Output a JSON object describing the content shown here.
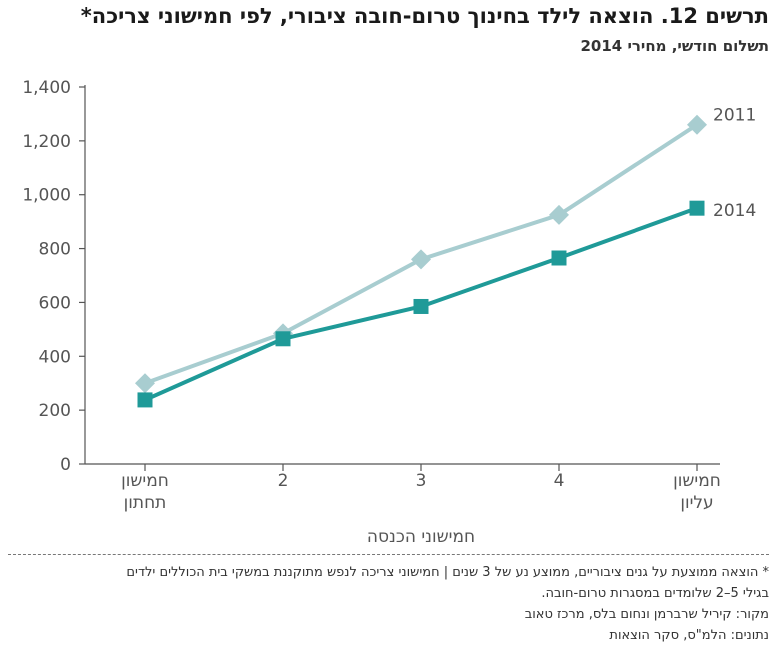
{
  "header": {
    "title": "תרשים 12. הוצאה לילד בחינוך טרום-חובה ציבורי, לפי חמישוני צריכה*",
    "subtitle": "תשלום חודשי, מחירי 2014"
  },
  "chart_data": {
    "type": "line",
    "categories": [
      [
        "חמישון",
        "תחתון"
      ],
      [
        "2"
      ],
      [
        "3"
      ],
      [
        "4"
      ],
      [
        "חמישון",
        "עליון"
      ]
    ],
    "xlabel": "חמישוני הכנסה",
    "ylabel": "",
    "ylim": [
      0,
      1400
    ],
    "yticks": [
      0,
      200,
      400,
      600,
      800,
      1000,
      1200,
      1400
    ],
    "ytick_labels": [
      "0",
      "200",
      "400",
      "600",
      "800",
      "1,000",
      "1,200",
      "1,400"
    ],
    "grid": false,
    "series": [
      {
        "name": "2011",
        "values": [
          300,
          485,
          760,
          925,
          1260
        ],
        "color": "#a8cdd0",
        "marker": "diamond"
      },
      {
        "name": "2014",
        "values": [
          238,
          465,
          585,
          765,
          950
        ],
        "color": "#1f9a98",
        "marker": "square"
      }
    ]
  },
  "footnotes": {
    "note_line1": "* הוצאה ממוצעת על גנים ציבוריים, ממוצע נע של 3 שנים | חמישוני צריכה לנפש מתוקננת במשקי בית הכוללים ילדים",
    "note_line2": "בגילי 5–2 שלומדים במסגרות טרום-חובה.",
    "source": "מקור: קיריל שרברמן ונחום בלס, מרכז טאוב",
    "data_source": "נתונים: הלמ\"ס, סקר הוצאות"
  }
}
